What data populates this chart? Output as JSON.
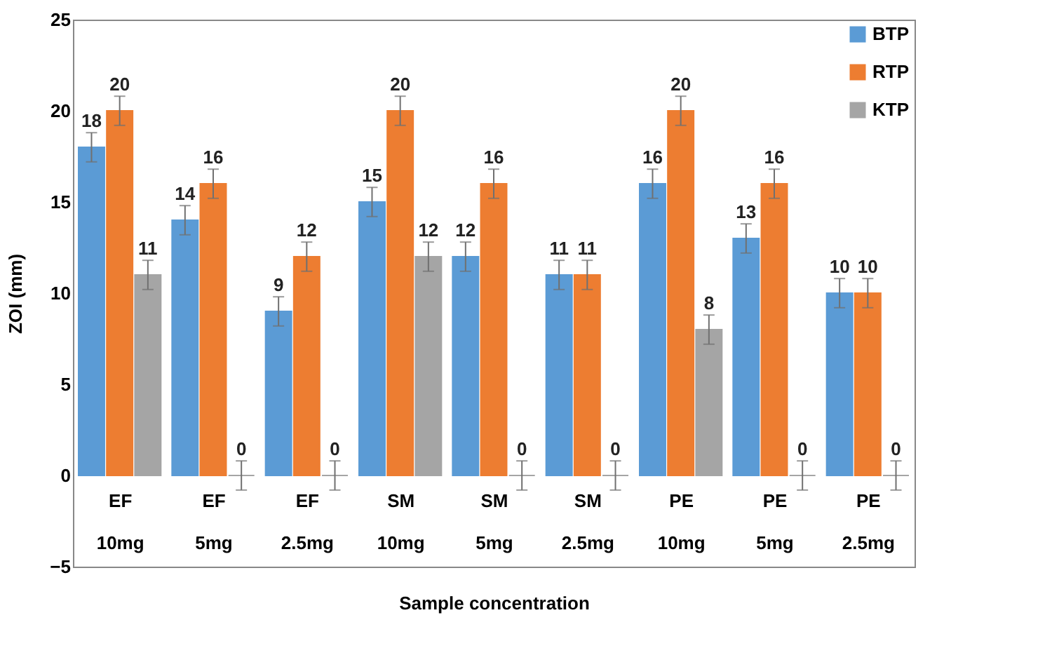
{
  "chart_data": {
    "type": "bar",
    "xlabel": "Sample concentration",
    "ylabel": "ZOI  (mm)",
    "categories": [
      "EF\n10mg",
      "EF\n5mg",
      "EF\n2.5mg",
      "SM\n10mg",
      "SM\n5mg",
      "SM\n2.5mg",
      "PE\n10mg",
      "PE\n5mg",
      "PE\n2.5mg"
    ],
    "series": [
      {
        "name": "BTP",
        "color": "#5b9bd5",
        "values": [
          18,
          14,
          9,
          15,
          12,
          11,
          16,
          13,
          10
        ],
        "errors": [
          0.8,
          0.8,
          0.8,
          0.8,
          0.8,
          0.8,
          0.8,
          0.8,
          0.8
        ]
      },
      {
        "name": "RTP",
        "color": "#ed7d31",
        "values": [
          20,
          16,
          12,
          20,
          16,
          11,
          20,
          16,
          10
        ],
        "errors": [
          0.8,
          0.8,
          0.8,
          0.8,
          0.8,
          0.8,
          0.8,
          0.8,
          0.8
        ]
      },
      {
        "name": "KTP",
        "color": "#a5a5a5",
        "values": [
          11,
          0,
          0,
          12,
          0,
          0,
          8,
          0,
          0
        ],
        "errors": [
          0.8,
          0.8,
          0.8,
          0.8,
          0.8,
          0.8,
          0.8,
          0.8,
          0.8
        ]
      }
    ],
    "ylim": [
      -5,
      25
    ],
    "yticks": [
      -5,
      0,
      5,
      10,
      15,
      20,
      25
    ],
    "grid": false,
    "legend": "top right",
    "data_labels": true
  }
}
